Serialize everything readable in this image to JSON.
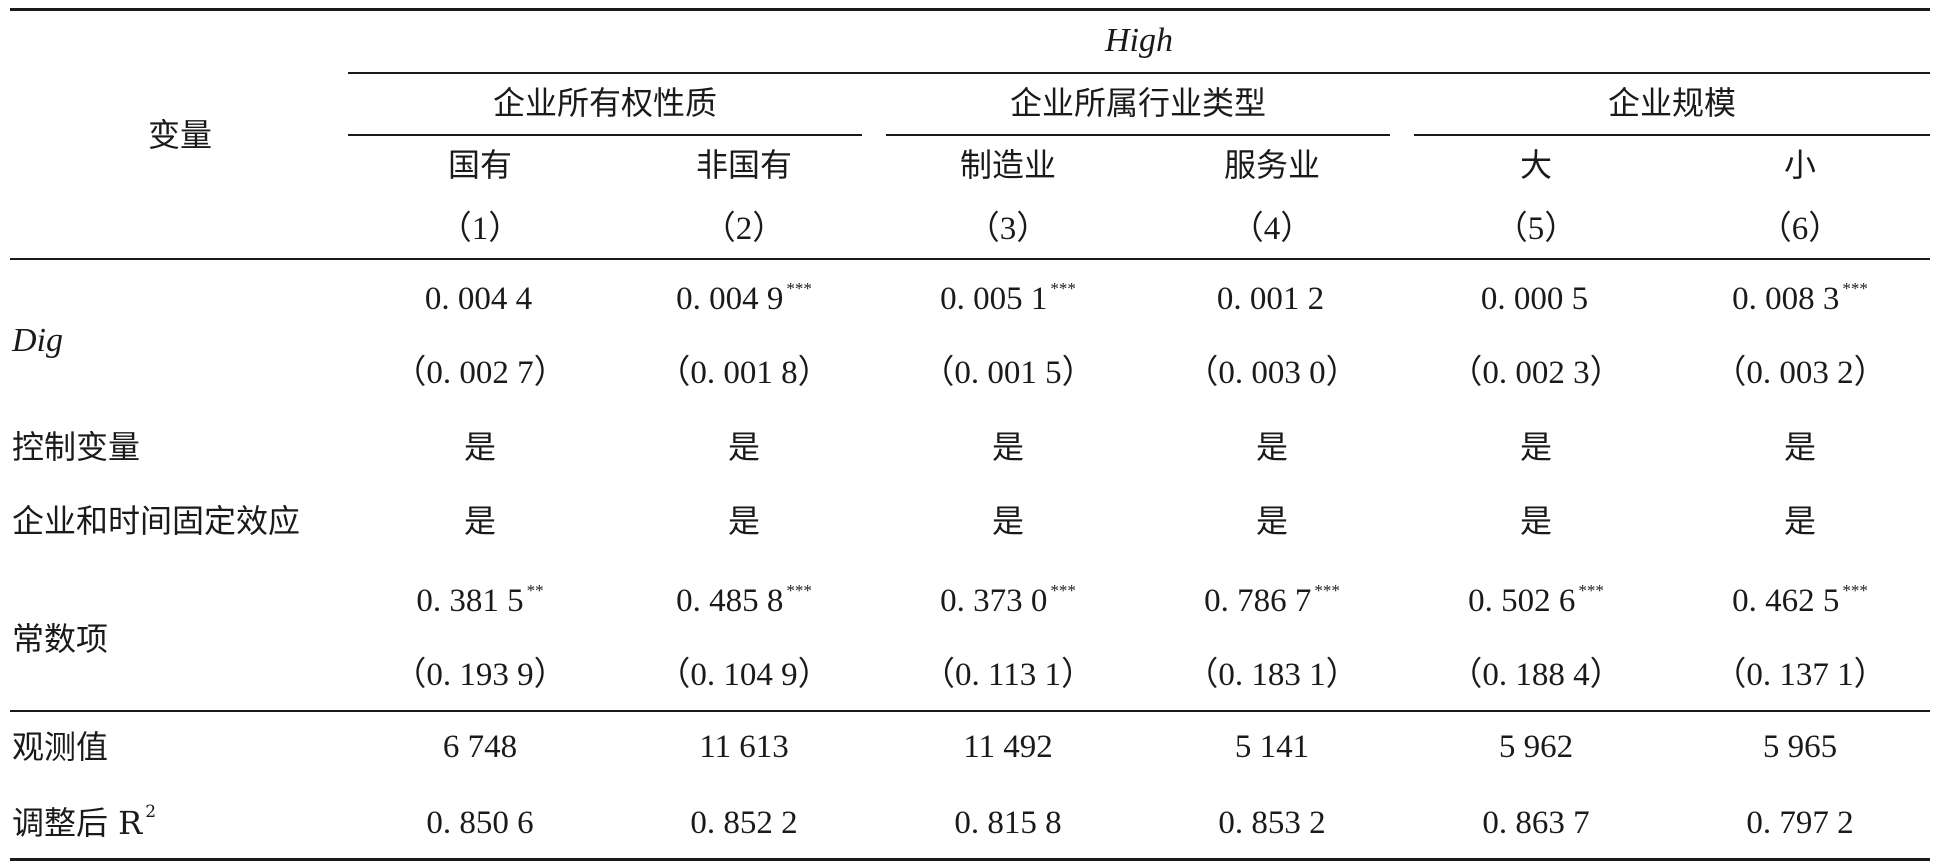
{
  "header": {
    "variable_label": "变量",
    "group_title": "High",
    "group_headers": [
      "企业所有权性质",
      "企业所属行业类型",
      "企业规模"
    ],
    "columns": [
      {
        "name": "国有",
        "index": "（1）"
      },
      {
        "name": "非国有",
        "index": "（2）"
      },
      {
        "name": "制造业",
        "index": "（3）"
      },
      {
        "name": "服务业",
        "index": "（4）"
      },
      {
        "name": "大",
        "index": "（5）"
      },
      {
        "name": "小",
        "index": "（6）"
      }
    ]
  },
  "rows": {
    "dig": {
      "label": "Dig",
      "coef": [
        {
          "v": "0. 004 4",
          "sig": ""
        },
        {
          "v": "0. 004 9",
          "sig": "***"
        },
        {
          "v": "0. 005 1",
          "sig": "***"
        },
        {
          "v": "0. 001 2",
          "sig": ""
        },
        {
          "v": "0. 000 5",
          "sig": ""
        },
        {
          "v": "0. 008 3",
          "sig": "***"
        }
      ],
      "se": [
        "（0. 002 7）",
        "（0. 001 8）",
        "（0. 001 5）",
        "（0. 003 0）",
        "（0. 002 3）",
        "（0. 003 2）"
      ]
    },
    "controls": {
      "label": "控制变量",
      "values": [
        "是",
        "是",
        "是",
        "是",
        "是",
        "是"
      ]
    },
    "fixed_effects": {
      "label": "企业和时间固定效应",
      "values": [
        "是",
        "是",
        "是",
        "是",
        "是",
        "是"
      ]
    },
    "constant": {
      "label": "常数项",
      "coef": [
        {
          "v": "0. 381 5",
          "sig": "**"
        },
        {
          "v": "0. 485 8",
          "sig": "***"
        },
        {
          "v": "0. 373 0",
          "sig": "***"
        },
        {
          "v": "0. 786 7",
          "sig": "***"
        },
        {
          "v": "0. 502 6",
          "sig": "***"
        },
        {
          "v": "0. 462 5",
          "sig": "***"
        }
      ],
      "se": [
        "（0. 193 9）",
        "（0. 104 9）",
        "（0. 113 1）",
        "（0. 183 1）",
        "（0. 188 4）",
        "（0. 137 1）"
      ]
    },
    "observations": {
      "label": "观测值",
      "values": [
        "6 748",
        "11 613",
        "11 492",
        "5 141",
        "5 962",
        "5 965"
      ]
    },
    "r2": {
      "label": "调整后 R",
      "label_sup": "2",
      "values": [
        "0. 850 6",
        "0. 852 2",
        "0. 815 8",
        "0. 853 2",
        "0. 863 7",
        "0. 797 2"
      ]
    }
  }
}
